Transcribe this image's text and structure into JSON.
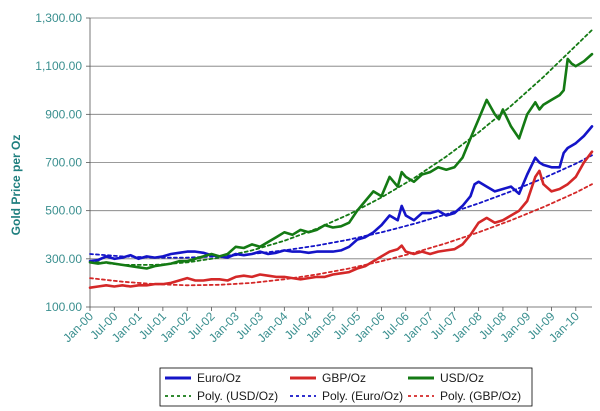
{
  "chart_data": {
    "type": "line",
    "ylabel": "Gold Price per Oz",
    "xlabel": "",
    "ylim": [
      100,
      1300
    ],
    "yticks": [
      100,
      300,
      500,
      700,
      900,
      1100,
      1300
    ],
    "ytick_labels": [
      "100.00",
      "300.00",
      "500.00",
      "700.00",
      "900.00",
      "1,100.00",
      "1,300.00"
    ],
    "xlim": [
      0,
      124
    ],
    "xtick_positions": [
      0,
      6,
      12,
      18,
      24,
      30,
      36,
      42,
      48,
      54,
      60,
      66,
      72,
      78,
      84,
      90,
      96,
      102,
      108,
      114,
      120
    ],
    "xtick_labels": [
      "Jan-00",
      "Jul-00",
      "Jan-01",
      "Jul-01",
      "Jan-02",
      "Jul-02",
      "Jan-03",
      "Jul-03",
      "Jan-04",
      "Jul-04",
      "Jan-05",
      "Jul-05",
      "Jan-06",
      "Jul-06",
      "Jan-07",
      "Jul-07",
      "Jan-08",
      "Jul-08",
      "Jan-09",
      "Jul-09",
      "Jan-10"
    ],
    "series": [
      {
        "name": "Euro/Oz",
        "color": "#1414c8",
        "style": "solid",
        "x": [
          0,
          2,
          4,
          6,
          8,
          10,
          12,
          14,
          16,
          18,
          20,
          22,
          24,
          26,
          28,
          30,
          32,
          34,
          36,
          38,
          40,
          42,
          44,
          46,
          48,
          50,
          52,
          54,
          56,
          58,
          60,
          62,
          64,
          66,
          68,
          70,
          72,
          74,
          76,
          77,
          78,
          80,
          82,
          84,
          86,
          88,
          90,
          92,
          94,
          95,
          96,
          98,
          100,
          102,
          104,
          106,
          108,
          110,
          111,
          112,
          114,
          116,
          117,
          118,
          119,
          120,
          122,
          124
        ],
        "y": [
          290,
          295,
          310,
          300,
          305,
          315,
          300,
          310,
          305,
          310,
          320,
          325,
          330,
          330,
          325,
          315,
          310,
          305,
          320,
          315,
          320,
          330,
          320,
          325,
          335,
          330,
          330,
          325,
          330,
          330,
          330,
          335,
          350,
          380,
          390,
          410,
          440,
          480,
          460,
          520,
          480,
          460,
          490,
          490,
          500,
          480,
          490,
          520,
          560,
          610,
          620,
          600,
          580,
          590,
          600,
          570,
          650,
          720,
          700,
          690,
          680,
          680,
          740,
          760,
          770,
          780,
          810,
          850
        ]
      },
      {
        "name": "GBP/Oz",
        "color": "#d42828",
        "style": "solid",
        "x": [
          0,
          2,
          4,
          6,
          8,
          10,
          12,
          14,
          16,
          18,
          20,
          22,
          24,
          26,
          28,
          30,
          32,
          34,
          36,
          38,
          40,
          42,
          44,
          46,
          48,
          50,
          52,
          54,
          56,
          58,
          60,
          62,
          64,
          66,
          68,
          70,
          72,
          74,
          76,
          77,
          78,
          80,
          82,
          84,
          86,
          88,
          90,
          92,
          94,
          96,
          98,
          100,
          102,
          104,
          106,
          108,
          110,
          111,
          112,
          114,
          116,
          118,
          120,
          122,
          124
        ],
        "y": [
          180,
          185,
          190,
          185,
          190,
          185,
          190,
          190,
          195,
          195,
          200,
          210,
          220,
          210,
          210,
          215,
          215,
          210,
          225,
          230,
          225,
          235,
          230,
          225,
          225,
          220,
          215,
          220,
          225,
          225,
          235,
          240,
          245,
          260,
          270,
          290,
          310,
          330,
          340,
          355,
          330,
          320,
          330,
          320,
          330,
          335,
          340,
          360,
          400,
          450,
          470,
          450,
          460,
          480,
          500,
          540,
          640,
          665,
          610,
          580,
          590,
          610,
          640,
          700,
          745
        ]
      },
      {
        "name": "USD/Oz",
        "color": "#147a14",
        "style": "solid",
        "x": [
          0,
          2,
          4,
          6,
          8,
          10,
          12,
          14,
          16,
          18,
          20,
          22,
          24,
          26,
          28,
          30,
          32,
          34,
          36,
          38,
          40,
          42,
          44,
          46,
          48,
          50,
          52,
          54,
          56,
          58,
          60,
          62,
          64,
          66,
          68,
          70,
          72,
          74,
          76,
          77,
          78,
          80,
          82,
          84,
          86,
          88,
          90,
          92,
          94,
          96,
          98,
          100,
          101,
          102,
          104,
          106,
          108,
          110,
          111,
          112,
          114,
          116,
          117,
          118,
          119,
          120,
          122,
          124
        ],
        "y": [
          285,
          280,
          285,
          280,
          275,
          270,
          265,
          260,
          270,
          275,
          280,
          290,
          290,
          300,
          310,
          320,
          310,
          320,
          350,
          345,
          360,
          350,
          370,
          390,
          410,
          400,
          420,
          410,
          420,
          440,
          430,
          435,
          450,
          500,
          540,
          580,
          560,
          640,
          600,
          660,
          640,
          620,
          650,
          660,
          680,
          670,
          680,
          720,
          800,
          880,
          960,
          900,
          880,
          920,
          850,
          800,
          900,
          950,
          920,
          940,
          960,
          980,
          1000,
          1130,
          1110,
          1100,
          1120,
          1150
        ]
      },
      {
        "name": "Poly. (USD/Oz)",
        "color": "#147a14",
        "style": "dotted",
        "x": [
          0,
          8,
          16,
          24,
          32,
          40,
          48,
          56,
          64,
          72,
          80,
          88,
          96,
          104,
          112,
          120,
          124
        ],
        "y": [
          290,
          275,
          275,
          285,
          305,
          335,
          375,
          425,
          485,
          555,
          635,
          725,
          825,
          935,
          1055,
          1185,
          1250
        ]
      },
      {
        "name": "Poly. (Euro/Oz)",
        "color": "#1414c8",
        "style": "dotted",
        "x": [
          0,
          8,
          16,
          24,
          32,
          40,
          48,
          56,
          64,
          72,
          80,
          88,
          96,
          104,
          112,
          120,
          124
        ],
        "y": [
          320,
          310,
          305,
          305,
          310,
          320,
          335,
          355,
          380,
          410,
          445,
          485,
          530,
          580,
          635,
          695,
          730
        ]
      },
      {
        "name": "Poly. (GBP/Oz)",
        "color": "#d42828",
        "style": "dotted",
        "x": [
          0,
          8,
          16,
          24,
          32,
          40,
          48,
          56,
          64,
          72,
          80,
          88,
          96,
          104,
          112,
          120,
          124
        ],
        "y": [
          220,
          205,
          195,
          190,
          192,
          200,
          215,
          235,
          260,
          290,
          325,
          365,
          410,
          460,
          515,
          575,
          610
        ]
      }
    ],
    "legend": {
      "position": "bottom",
      "entries": [
        "Euro/Oz",
        "GBP/Oz",
        "USD/Oz",
        "Poly. (USD/Oz)",
        "Poly. (Euro/Oz)",
        "Poly. (GBP/Oz)"
      ]
    },
    "grid": true
  }
}
